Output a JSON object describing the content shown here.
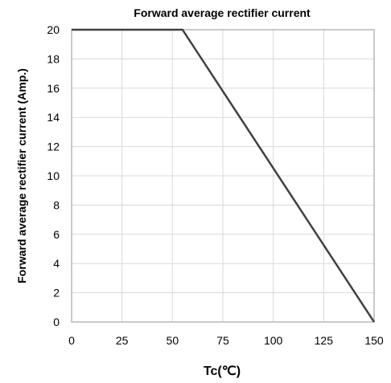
{
  "chart_data": {
    "type": "line",
    "title": "Forward average rectifier current",
    "xlabel": "Tc(℃)",
    "ylabel": "Forward average rectifier current  (Amp.)",
    "xlim": [
      0,
      150
    ],
    "ylim": [
      0,
      20
    ],
    "x_ticks": [
      0,
      25,
      50,
      75,
      100,
      125,
      150
    ],
    "y_ticks": [
      0,
      2,
      4,
      6,
      8,
      10,
      12,
      14,
      16,
      18,
      20
    ],
    "x_tick_labels": [
      "0",
      "25",
      "50",
      "75",
      "100",
      "125",
      "150"
    ],
    "y_tick_labels": [
      "0",
      "2",
      "4",
      "6",
      "8",
      "10",
      "12",
      "14",
      "16",
      "18",
      "20"
    ],
    "grid": true,
    "series": [
      {
        "x": [
          0,
          55,
          150
        ],
        "y": [
          20,
          20,
          0
        ]
      }
    ],
    "colors": {
      "line": "#404040",
      "grid": "#d9d9d9",
      "frame": "#a6a6a6"
    }
  }
}
